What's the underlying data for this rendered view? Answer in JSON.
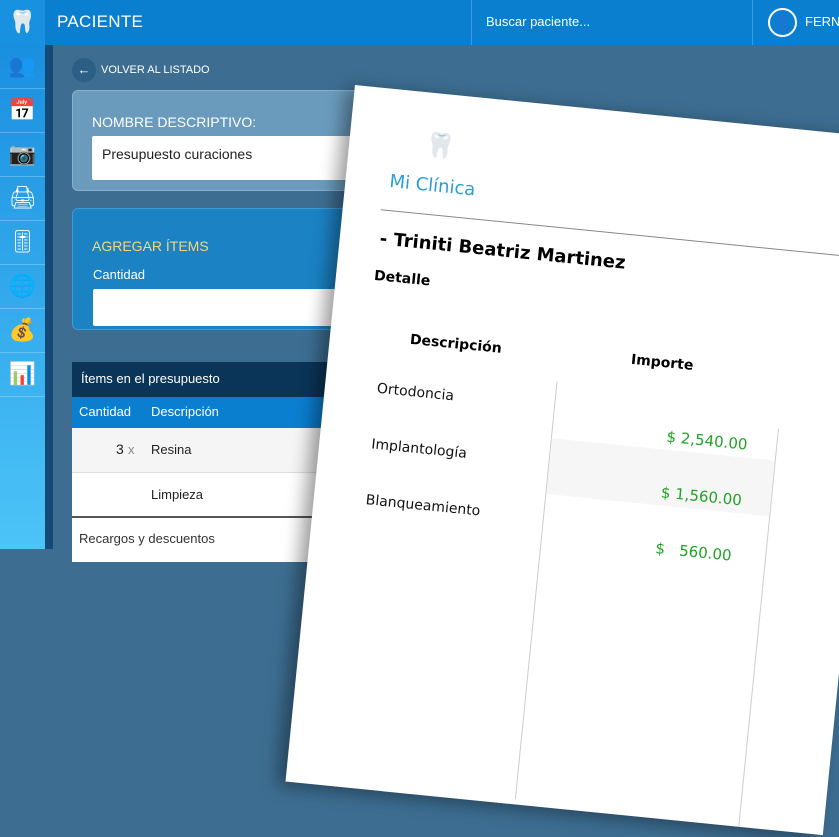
{
  "header": {
    "title": "PACIENTE",
    "search_placeholder": "Buscar paciente...",
    "user_name": "FERN"
  },
  "sidebar": {
    "items": [
      {
        "icon": "tooth-logo-icon"
      },
      {
        "icon": "patients-icon"
      },
      {
        "icon": "calendar-icon"
      },
      {
        "icon": "camera-icon"
      },
      {
        "icon": "printer-icon"
      },
      {
        "icon": "settings-sliders-icon"
      },
      {
        "icon": "globe-icon"
      },
      {
        "icon": "coins-icon"
      },
      {
        "icon": "chart-icon"
      }
    ]
  },
  "back_label": "VOLVER AL LISTADO",
  "name_card": {
    "label": "NOMBRE DESCRIPTIVO:",
    "value": "Presupuesto curaciones"
  },
  "add_card": {
    "title": "AGREGAR ÍTEMS",
    "quantity_label": "Cantidad",
    "quantity_value": ""
  },
  "items_table": {
    "title": "Ítems en el presupuesto",
    "headers": [
      "Cantidad",
      "Descripción"
    ],
    "rows": [
      {
        "qty": "3",
        "x": "x",
        "desc": "Resina"
      },
      {
        "qty": "",
        "x": "",
        "desc": "Limpieza"
      }
    ],
    "footer": "Recargos y descuentos"
  },
  "document": {
    "clinic": "Mi Clínica",
    "patient": "- Triniti Beatriz Martinez",
    "section": "Detalle",
    "headers": [
      "Descripción",
      "Importe"
    ],
    "rows": [
      {
        "desc": "Ortodoncia",
        "amount": "$ 2,540.00"
      },
      {
        "desc": "Implantología",
        "amount": "$ 1,560.00"
      },
      {
        "desc": "Blanqueamiento",
        "amount": "$   560.00"
      }
    ],
    "colors": {
      "amount": "#1fa324",
      "clinic": "#2a9fd6"
    }
  }
}
